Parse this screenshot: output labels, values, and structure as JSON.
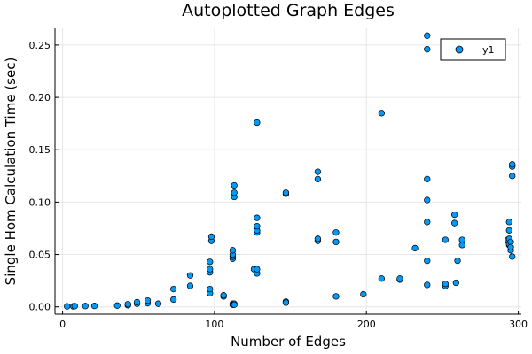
{
  "chart_data": {
    "type": "scatter",
    "title": "Autoplotted Graph Edges",
    "xlabel": "Number of Edges",
    "ylabel": "Single Hom Calculation Time (sec)",
    "xlim": [
      -5,
      302
    ],
    "ylim": [
      -0.007,
      0.266
    ],
    "xticks": [
      0,
      100,
      200,
      300
    ],
    "yticks": [
      0.0,
      0.05,
      0.1,
      0.15,
      0.2,
      0.25
    ],
    "xtick_labels": [
      "0",
      "100",
      "200",
      "300"
    ],
    "ytick_labels": [
      "0.00",
      "0.05",
      "0.10",
      "0.15",
      "0.20",
      "0.25"
    ],
    "grid": true,
    "legend_position": "top-right",
    "marker_color": "#009AFA",
    "series": [
      {
        "name": "y1",
        "x": [
          3,
          7,
          8,
          15,
          21,
          36,
          43,
          43,
          49,
          49,
          56,
          56,
          63,
          73,
          73,
          84,
          84,
          97,
          97,
          97,
          97,
          97,
          98,
          98,
          106,
          106,
          112,
          112,
          112,
          112,
          112,
          112,
          113,
          113,
          113,
          113,
          113,
          126,
          128,
          128,
          128,
          128,
          128,
          128,
          128,
          147,
          147,
          147,
          147,
          168,
          168,
          168,
          168,
          180,
          180,
          180,
          198,
          210,
          210,
          222,
          222,
          232,
          240,
          240,
          240,
          240,
          240,
          240,
          240,
          252,
          252,
          252,
          258,
          258,
          259,
          260,
          263,
          263,
          293,
          293,
          294,
          294,
          294,
          294,
          294,
          295,
          295,
          295,
          296,
          296,
          296,
          296
        ],
        "y": [
          0.0005,
          0.0005,
          0.0007,
          0.0008,
          0.0009,
          0.0012,
          0.0016,
          0.0025,
          0.003,
          0.0045,
          0.0035,
          0.006,
          0.003,
          0.007,
          0.017,
          0.02,
          0.03,
          0.013,
          0.017,
          0.033,
          0.036,
          0.043,
          0.063,
          0.067,
          0.01,
          0.011,
          0.002,
          0.003,
          0.046,
          0.048,
          0.05,
          0.054,
          0.105,
          0.109,
          0.116,
          0.003,
          0.002,
          0.036,
          0.032,
          0.036,
          0.071,
          0.073,
          0.077,
          0.085,
          0.176,
          0.005,
          0.004,
          0.108,
          0.109,
          0.063,
          0.065,
          0.122,
          0.129,
          0.01,
          0.062,
          0.071,
          0.012,
          0.027,
          0.185,
          0.026,
          0.027,
          0.056,
          0.021,
          0.044,
          0.102,
          0.122,
          0.246,
          0.259,
          0.081,
          0.02,
          0.022,
          0.064,
          0.08,
          0.088,
          0.023,
          0.044,
          0.064,
          0.059,
          0.063,
          0.064,
          0.065,
          0.073,
          0.081,
          0.059,
          0.06,
          0.062,
          0.054,
          0.057,
          0.125,
          0.134,
          0.136,
          0.048
        ]
      }
    ]
  }
}
